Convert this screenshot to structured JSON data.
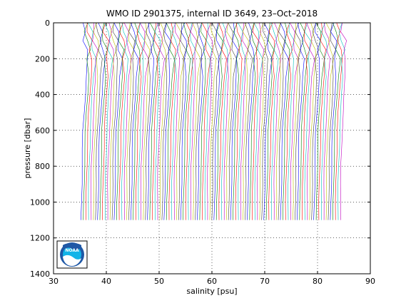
{
  "chart_data": {
    "type": "line",
    "title": "WMO ID 2901375, internal ID 3649, 23–Oct–2018",
    "xlabel": "salinity [psu]",
    "ylabel": "pressure [dbar]",
    "xlim": [
      30,
      90
    ],
    "ylim": [
      1400,
      0
    ],
    "y_reversed": true,
    "xticks": [
      "30",
      "40",
      "50",
      "60",
      "70",
      "80",
      "90"
    ],
    "yticks": [
      "0",
      "200",
      "400",
      "600",
      "800",
      "1000",
      "1200",
      "1400"
    ],
    "grid": true,
    "grid_style": "dotted",
    "profile_count": 110,
    "profile_offset_start": 35.6,
    "profile_offset_step": 0.45,
    "profile_colors": [
      "#0000ff",
      "#008000",
      "#ff0000",
      "#00bfbf",
      "#bf00bf",
      "#bfbf00",
      "#404040"
    ],
    "series": [
      {
        "pressure": [
          0,
          50,
          100,
          150,
          200,
          300,
          400,
          500,
          600,
          700,
          800,
          900,
          1000,
          1100,
          1200
        ],
        "salinity": [
          36.2,
          36.3,
          36.6,
          36.8,
          36.9,
          36.8,
          36.6,
          36.4,
          36.2,
          36.1,
          36.0,
          35.95,
          35.9,
          35.85,
          35.8
        ]
      }
    ]
  },
  "logo": {
    "text": "NOAA",
    "colors": {
      "outer": "#1f58a6",
      "inner": "#12b4e8",
      "white": "#ffffff"
    }
  }
}
